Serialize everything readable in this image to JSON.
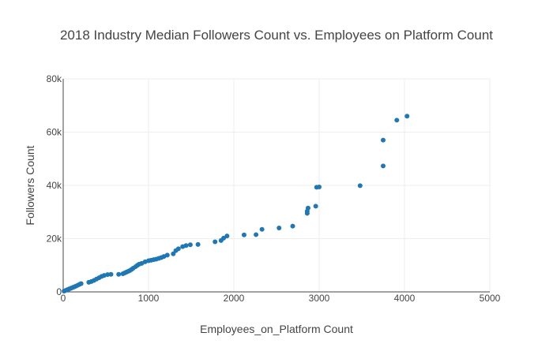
{
  "chart_data": {
    "type": "scatter",
    "title": "2018 Industry Median Followers Count vs. Employees on Platform Count",
    "xlabel": "Employees_on_Platform Count",
    "ylabel": "Followers Count",
    "xlim": [
      0,
      5000
    ],
    "ylim": [
      0,
      80000
    ],
    "xticks": [
      0,
      1000,
      2000,
      3000,
      4000,
      5000
    ],
    "xtick_labels": [
      "0",
      "1000",
      "2000",
      "3000",
      "4000",
      "5000"
    ],
    "yticks": [
      0,
      20000,
      40000,
      60000,
      80000
    ],
    "ytick_labels": [
      "0",
      "20k",
      "40k",
      "60k",
      "80k"
    ],
    "grid": true,
    "legend": "none",
    "marker_color": "#1f77b4",
    "points": [
      {
        "x": 10,
        "y": 300
      },
      {
        "x": 25,
        "y": 500
      },
      {
        "x": 40,
        "y": 700
      },
      {
        "x": 55,
        "y": 900
      },
      {
        "x": 70,
        "y": 1100
      },
      {
        "x": 85,
        "y": 1300
      },
      {
        "x": 100,
        "y": 1500
      },
      {
        "x": 115,
        "y": 1700
      },
      {
        "x": 130,
        "y": 1900
      },
      {
        "x": 150,
        "y": 2200
      },
      {
        "x": 170,
        "y": 2500
      },
      {
        "x": 190,
        "y": 2800
      },
      {
        "x": 210,
        "y": 3100
      },
      {
        "x": 300,
        "y": 3600
      },
      {
        "x": 330,
        "y": 3900
      },
      {
        "x": 360,
        "y": 4300
      },
      {
        "x": 390,
        "y": 4800
      },
      {
        "x": 420,
        "y": 5300
      },
      {
        "x": 450,
        "y": 5800
      },
      {
        "x": 480,
        "y": 6200
      },
      {
        "x": 520,
        "y": 6500
      },
      {
        "x": 560,
        "y": 6600
      },
      {
        "x": 650,
        "y": 6600
      },
      {
        "x": 700,
        "y": 6800
      },
      {
        "x": 720,
        "y": 7100
      },
      {
        "x": 740,
        "y": 7400
      },
      {
        "x": 760,
        "y": 7700
      },
      {
        "x": 780,
        "y": 8000
      },
      {
        "x": 800,
        "y": 8400
      },
      {
        "x": 820,
        "y": 8900
      },
      {
        "x": 850,
        "y": 9500
      },
      {
        "x": 870,
        "y": 10000
      },
      {
        "x": 890,
        "y": 10400
      },
      {
        "x": 920,
        "y": 10700
      },
      {
        "x": 960,
        "y": 11300
      },
      {
        "x": 1000,
        "y": 11700
      },
      {
        "x": 1030,
        "y": 11900
      },
      {
        "x": 1060,
        "y": 12100
      },
      {
        "x": 1090,
        "y": 12300
      },
      {
        "x": 1120,
        "y": 12600
      },
      {
        "x": 1150,
        "y": 12900
      },
      {
        "x": 1180,
        "y": 13300
      },
      {
        "x": 1220,
        "y": 13800
      },
      {
        "x": 1290,
        "y": 14300
      },
      {
        "x": 1320,
        "y": 15500
      },
      {
        "x": 1350,
        "y": 16200
      },
      {
        "x": 1400,
        "y": 17000
      },
      {
        "x": 1440,
        "y": 17400
      },
      {
        "x": 1490,
        "y": 17700
      },
      {
        "x": 1580,
        "y": 17800
      },
      {
        "x": 1780,
        "y": 18800
      },
      {
        "x": 1850,
        "y": 19300
      },
      {
        "x": 1880,
        "y": 20200
      },
      {
        "x": 1920,
        "y": 21000
      },
      {
        "x": 2120,
        "y": 21400
      },
      {
        "x": 2260,
        "y": 21500
      },
      {
        "x": 2330,
        "y": 23500
      },
      {
        "x": 2530,
        "y": 24000
      },
      {
        "x": 2690,
        "y": 24700
      },
      {
        "x": 2860,
        "y": 29500
      },
      {
        "x": 2860,
        "y": 30300
      },
      {
        "x": 2870,
        "y": 31500
      },
      {
        "x": 2960,
        "y": 32200
      },
      {
        "x": 2970,
        "y": 39300
      },
      {
        "x": 3000,
        "y": 39400
      },
      {
        "x": 3480,
        "y": 39900
      },
      {
        "x": 3750,
        "y": 47300
      },
      {
        "x": 3750,
        "y": 57000
      },
      {
        "x": 3910,
        "y": 64500
      },
      {
        "x": 4030,
        "y": 66000
      }
    ]
  }
}
